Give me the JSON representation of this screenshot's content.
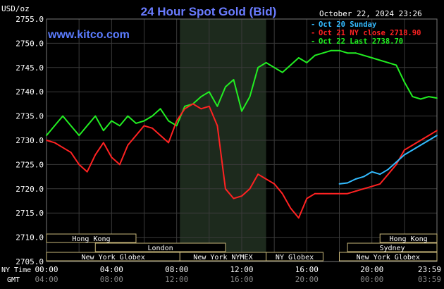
{
  "header": {
    "unit_label": "USD/oz",
    "title": "24 Hour Spot Gold (Bid)",
    "datetime": "October 22, 2024 23:26",
    "website": "www.kitco.com"
  },
  "legend": [
    {
      "text": "Oct 20 Sunday",
      "color": "#33bbff"
    },
    {
      "text": "Oct 21 NY close 2718.90",
      "color": "#ff2222"
    },
    {
      "text": "Oct 22 Last 2738.70",
      "color": "#22ee22"
    }
  ],
  "axis": {
    "row1_label": "NY Time",
    "row2_label": "GMT",
    "ny_ticks": [
      "00:00",
      "04:00",
      "08:00",
      "12:00",
      "16:00",
      "20:00",
      "23:59"
    ],
    "gmt_ticks": [
      "04:00",
      "08:00",
      "12:00",
      "16:00",
      "20:00",
      "00:00",
      "03:59"
    ],
    "y_ticks": [
      "2755.0",
      "2750.0",
      "2745.0",
      "2740.0",
      "2735.0",
      "2730.0",
      "2725.0",
      "2720.0",
      "2715.0",
      "2710.0",
      "2705.0"
    ]
  },
  "sessions": [
    {
      "label": "Hong Kong",
      "start": 0,
      "end": 5.5,
      "row": 0
    },
    {
      "label": "London",
      "start": 3,
      "end": 11,
      "row": 1
    },
    {
      "label": "New York Globex",
      "start": 0,
      "end": 8.2,
      "row": 2
    },
    {
      "label": "New York NYMEX",
      "start": 8.2,
      "end": 13.5,
      "row": 2
    },
    {
      "label": "NY Globex",
      "start": 13.5,
      "end": 17,
      "row": 2
    },
    {
      "label": "Hong Kong",
      "start": 20.5,
      "end": 24,
      "row": 0
    },
    {
      "label": "Sydney",
      "start": 18.5,
      "end": 24,
      "row": 1
    },
    {
      "label": "New York Globex",
      "start": 18,
      "end": 24,
      "row": 2
    }
  ],
  "chart_data": {
    "type": "line",
    "title": "24 Hour Spot Gold (Bid)",
    "ylabel": "USD/oz",
    "xlabel": "NY Time",
    "x_unit": "hours NY time",
    "ylim": [
      2705,
      2755
    ],
    "xlim": [
      0,
      24
    ],
    "grid": true,
    "legend_position": "top-right",
    "shaded_x_range": [
      8.2,
      13.5
    ],
    "series": [
      {
        "name": "Oct 20 Sunday",
        "color": "#33bbff",
        "x": [
          18,
          18.5,
          19,
          19.5,
          20,
          20.5,
          21,
          21.5,
          22,
          22.5,
          23,
          23.5,
          24
        ],
        "y": [
          2721.0,
          2721.2,
          2722.0,
          2722.5,
          2723.5,
          2723.0,
          2724.0,
          2725.5,
          2727.0,
          2728.0,
          2729.0,
          2730.0,
          2731.0
        ]
      },
      {
        "name": "Oct 21 NY close 2718.90",
        "color": "#ff2222",
        "x": [
          0,
          0.5,
          1,
          1.5,
          2,
          2.5,
          3,
          3.5,
          4,
          4.5,
          5,
          5.5,
          6,
          6.5,
          7,
          7.5,
          8,
          8.5,
          9,
          9.5,
          10,
          10.5,
          11,
          11.5,
          12,
          12.5,
          13,
          13.5,
          14,
          14.5,
          15,
          15.5,
          16,
          16.5,
          17,
          17.5,
          18,
          18.5,
          19,
          19.5,
          20,
          20.5,
          21,
          21.5,
          22,
          22.5,
          23,
          23.5,
          24
        ],
        "y": [
          2730.0,
          2729.5,
          2728.5,
          2727.5,
          2725.0,
          2723.5,
          2727.0,
          2729.5,
          2726.5,
          2725.0,
          2729.0,
          2731.0,
          2733.0,
          2732.5,
          2731.0,
          2729.5,
          2734.0,
          2736.5,
          2737.5,
          2736.5,
          2737.0,
          2733.0,
          2720.0,
          2718.0,
          2718.5,
          2720.0,
          2723.0,
          2722.0,
          2721.0,
          2719.0,
          2716.0,
          2714.0,
          2718.0,
          2719.0,
          2719.0,
          2719.0,
          2719.0,
          2719.0,
          2719.5,
          2720.0,
          2720.5,
          2721.0,
          2723.0,
          2725.0,
          2728.0,
          2729.0,
          2730.0,
          2731.0,
          2732.0
        ]
      },
      {
        "name": "Oct 22 Last 2738.70",
        "color": "#22ee22",
        "x": [
          0,
          0.5,
          1,
          1.5,
          2,
          2.5,
          3,
          3.5,
          4,
          4.5,
          5,
          5.5,
          6,
          6.5,
          7,
          7.5,
          8,
          8.5,
          9,
          9.5,
          10,
          10.5,
          11,
          11.5,
          12,
          12.5,
          13,
          13.5,
          14,
          14.5,
          15,
          15.5,
          16,
          16.5,
          17,
          17.5,
          18,
          18.5,
          19,
          19.5,
          20,
          20.5,
          21,
          21.5,
          22,
          22.5,
          23,
          23.5,
          24
        ],
        "y": [
          2731.0,
          2733.0,
          2735.0,
          2733.0,
          2731.0,
          2733.0,
          2735.0,
          2732.0,
          2734.0,
          2733.0,
          2735.0,
          2733.5,
          2734.0,
          2735.0,
          2736.5,
          2734.0,
          2733.0,
          2737.0,
          2737.5,
          2739.0,
          2740.0,
          2737.0,
          2741.0,
          2742.5,
          2736.0,
          2739.0,
          2745.0,
          2746.0,
          2745.0,
          2744.0,
          2745.5,
          2747.0,
          2746.0,
          2747.5,
          2748.0,
          2748.5,
          2748.5,
          2748.0,
          2748.0,
          2747.5,
          2747.0,
          2746.5,
          2746.0,
          2745.5,
          2742.0,
          2739.0,
          2738.5,
          2739.0,
          2738.7
        ]
      }
    ]
  }
}
